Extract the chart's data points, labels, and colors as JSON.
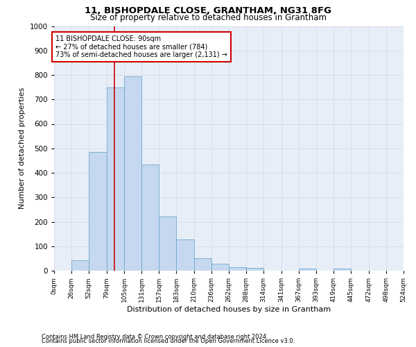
{
  "title": "11, BISHOPDALE CLOSE, GRANTHAM, NG31 8FG",
  "subtitle": "Size of property relative to detached houses in Grantham",
  "xlabel": "Distribution of detached houses by size in Grantham",
  "ylabel": "Number of detached properties",
  "bar_categories": [
    "0sqm",
    "26sqm",
    "52sqm",
    "79sqm",
    "105sqm",
    "131sqm",
    "157sqm",
    "183sqm",
    "210sqm",
    "236sqm",
    "262sqm",
    "288sqm",
    "314sqm",
    "341sqm",
    "367sqm",
    "393sqm",
    "419sqm",
    "445sqm",
    "472sqm",
    "498sqm",
    "524sqm"
  ],
  "bar_values": [
    0,
    42,
    484,
    748,
    793,
    433,
    220,
    127,
    50,
    28,
    15,
    10,
    0,
    0,
    8,
    0,
    8,
    0,
    0,
    0,
    0
  ],
  "bar_color": "#c5d8ef",
  "bar_edge_color": "#6fa8d0",
  "property_line_x": 90,
  "property_line_color": "#cc0000",
  "ylim": [
    0,
    1000
  ],
  "yticks": [
    0,
    100,
    200,
    300,
    400,
    500,
    600,
    700,
    800,
    900,
    1000
  ],
  "grid_color": "#d0d8e8",
  "annotation_text": "11 BISHOPDALE CLOSE: 90sqm\n← 27% of detached houses are smaller (784)\n73% of semi-detached houses are larger (2,131) →",
  "annotation_box_color": "#ffffff",
  "annotation_box_edge": "#cc0000",
  "footer1": "Contains HM Land Registry data © Crown copyright and database right 2024.",
  "footer2": "Contains public sector information licensed under the Open Government Licence v3.0.",
  "bin_edges": [
    0,
    26,
    52,
    79,
    105,
    131,
    157,
    183,
    210,
    236,
    262,
    288,
    314,
    341,
    367,
    393,
    419,
    445,
    472,
    498,
    524
  ]
}
